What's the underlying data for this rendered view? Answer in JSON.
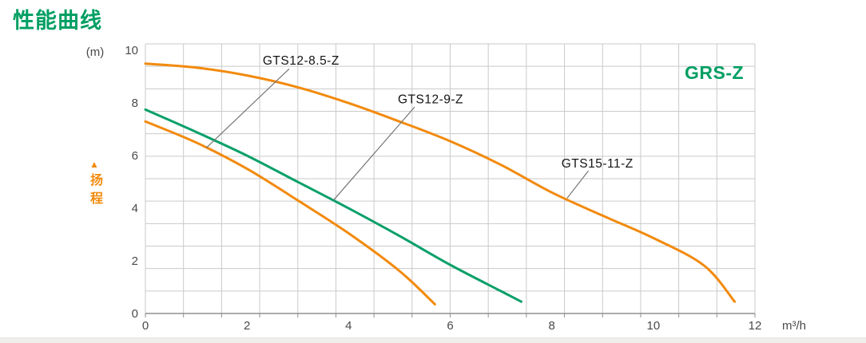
{
  "page_title": "性能曲线",
  "theme": {
    "title_green": "#009f63",
    "curve_green": "#0aa06a",
    "curve_orange": "#f28a0d",
    "grid": "#cacaca",
    "axis": "#8f8f8f",
    "tick_text": "#4a4a4a",
    "annotation_text": "#141414",
    "leader": "#757575"
  },
  "chart_data": {
    "type": "line",
    "title": "性能曲线",
    "family_label": "GRS-Z",
    "xlabel": "m³/h",
    "ylabel_unit": "(m)",
    "y_axis_caption": "扬程",
    "y_axis_marker": "▲",
    "xlim": [
      0,
      12
    ],
    "ylim": [
      0,
      10.25
    ],
    "x_ticks": [
      0,
      2,
      4,
      6,
      8,
      10,
      12
    ],
    "y_ticks": [
      0,
      2,
      4,
      6,
      8,
      10
    ],
    "grid": {
      "cols": 16,
      "rows": 12,
      "grid_on": true
    },
    "legend_position": "none",
    "series": [
      {
        "name": "GTS15-11-Z",
        "color": "orange",
        "points": [
          [
            0,
            9.5
          ],
          [
            1,
            9.35
          ],
          [
            2,
            9.05
          ],
          [
            3,
            8.6
          ],
          [
            4,
            8.0
          ],
          [
            5,
            7.3
          ],
          [
            6,
            6.55
          ],
          [
            7,
            5.65
          ],
          [
            8,
            4.6
          ],
          [
            9,
            3.72
          ],
          [
            10,
            2.87
          ],
          [
            11,
            1.82
          ],
          [
            11.6,
            0.45
          ]
        ]
      },
      {
        "name": "GTS12-9-Z",
        "color": "green",
        "points": [
          [
            0,
            7.75
          ],
          [
            1,
            6.9
          ],
          [
            2,
            6.0
          ],
          [
            3,
            5.0
          ],
          [
            4,
            4.0
          ],
          [
            5,
            2.95
          ],
          [
            6,
            1.85
          ],
          [
            7,
            0.85
          ],
          [
            7.4,
            0.45
          ]
        ]
      },
      {
        "name": "GTS12-8.5-Z",
        "color": "orange",
        "points": [
          [
            0,
            7.3
          ],
          [
            1,
            6.5
          ],
          [
            2,
            5.5
          ],
          [
            3,
            4.3
          ],
          [
            4,
            3.05
          ],
          [
            5,
            1.62
          ],
          [
            5.7,
            0.35
          ]
        ]
      }
    ],
    "annotations": [
      {
        "label": "GTS12-8.5-Z",
        "text_x": 2.31,
        "text_y": 9.62,
        "leader": [
          2.83,
          9.3,
          1.2,
          6.3
        ]
      },
      {
        "label": "GTS12-9-Z",
        "text_x": 4.97,
        "text_y": 8.14,
        "leader": [
          5.3,
          7.85,
          3.7,
          4.3
        ]
      },
      {
        "label": "GTS15-11-Z",
        "text_x": 8.19,
        "text_y": 5.7,
        "leader": [
          8.72,
          5.42,
          8.3,
          4.38
        ]
      }
    ]
  }
}
